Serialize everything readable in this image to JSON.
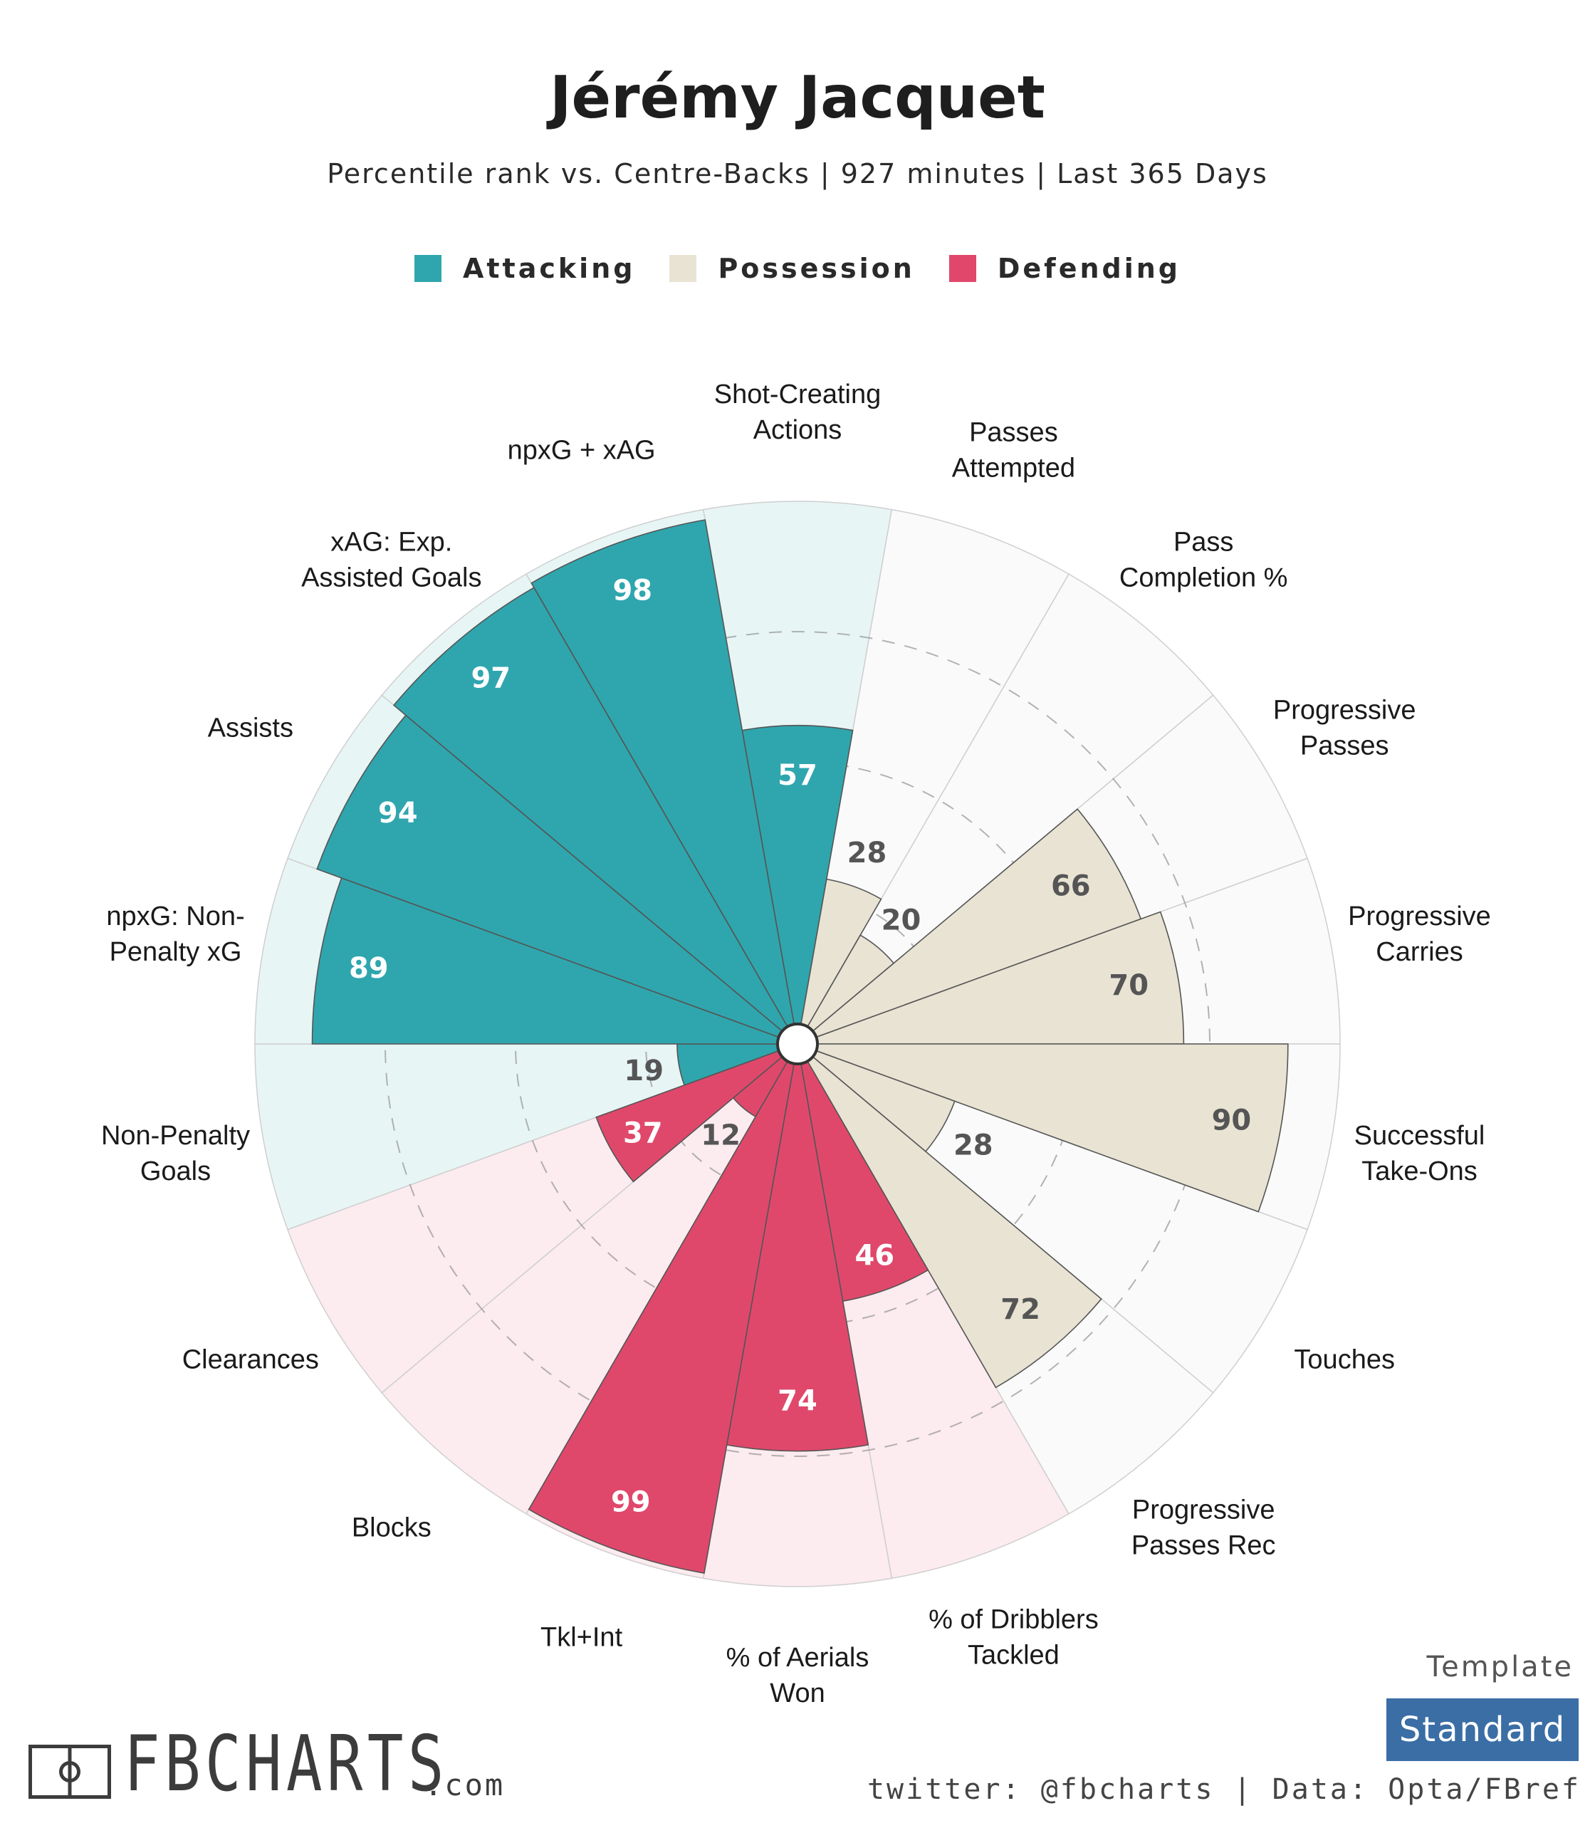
{
  "title": "Jérémy Jacquet",
  "subtitle": "Percentile rank vs. Centre-Backs | 927 minutes | Last 365 Days",
  "legend": [
    {
      "label": "Attacking",
      "color": "#2fa6ae"
    },
    {
      "label": "Possession",
      "color": "#e8e3d3"
    },
    {
      "label": "Defending",
      "color": "#e0486b"
    }
  ],
  "chart_data": {
    "type": "polar-bar",
    "range": [
      0,
      100
    ],
    "gridlines": [
      25,
      50,
      75
    ],
    "categories": [
      {
        "label": "Shot-Creating\nActions",
        "value": 57,
        "group": "Attacking"
      },
      {
        "label": "Passes\nAttempted",
        "value": 28,
        "group": "Possession"
      },
      {
        "label": "Pass\nCompletion %",
        "value": 20,
        "group": "Possession"
      },
      {
        "label": "Progressive\nPasses",
        "value": 66,
        "group": "Possession"
      },
      {
        "label": "Progressive\nCarries",
        "value": 70,
        "group": "Possession"
      },
      {
        "label": "Successful\nTake-Ons",
        "value": 90,
        "group": "Possession"
      },
      {
        "label": "Touches",
        "value": 28,
        "group": "Possession"
      },
      {
        "label": "Progressive\nPasses Rec",
        "value": 72,
        "group": "Possession"
      },
      {
        "label": "% of Dribblers\nTackled",
        "value": 46,
        "group": "Defending"
      },
      {
        "label": "% of Aerials\nWon",
        "value": 74,
        "group": "Defending"
      },
      {
        "label": "Tkl+Int",
        "value": 99,
        "group": "Defending"
      },
      {
        "label": "Blocks",
        "value": 12,
        "group": "Defending"
      },
      {
        "label": "Clearances",
        "value": 37,
        "group": "Defending"
      },
      {
        "label": "Non-Penalty\nGoals",
        "value": 19,
        "group": "Attacking"
      },
      {
        "label": "npxG: Non-\nPenalty xG",
        "value": 89,
        "group": "Attacking"
      },
      {
        "label": "Assists",
        "value": 94,
        "group": "Attacking"
      },
      {
        "label": "xAG: Exp.\nAssisted Goals",
        "value": 97,
        "group": "Attacking"
      },
      {
        "label": "npxG + xAG",
        "value": 98,
        "group": "Attacking"
      }
    ],
    "colors": {
      "Attacking": {
        "bar": "#2fa6ae",
        "background": "#e8f5f5",
        "label_color": "#ffffff"
      },
      "Possession": {
        "bar": "#e8e3d3",
        "background": "#fafafa",
        "label_color": "#555555"
      },
      "Defending": {
        "bar": "#e0486b",
        "background": "#fcebef",
        "label_color": "#ffffff"
      }
    }
  },
  "branding": {
    "logo": "FBCHARTS",
    "logo_suffix": ".com",
    "template_label": "Template",
    "template_button": "Standard",
    "credit": "twitter: @fbcharts | Data: Opta/FBref"
  }
}
